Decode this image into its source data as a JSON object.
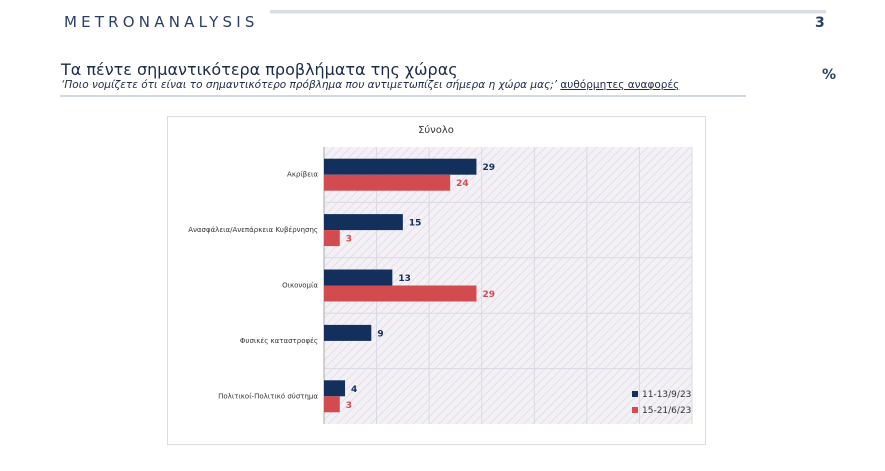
{
  "header": {
    "brand": "METRONANALYSIS",
    "page_number": "3",
    "title": "Τα πέντε σημαντικότερα προβλήματα της χώρας",
    "question": "‘Ποιο νομίζετε ότι είναι το σημαντικότερο πρόβλημα που αντιμετωπίζει σήμερα η χώρα μας;’",
    "question_tag": "αυθόρμητες αναφορές",
    "unit": "%"
  },
  "chart_data": {
    "type": "bar",
    "orientation": "horizontal",
    "title": "Σύνολο",
    "categories": [
      "Ακρίβεια",
      "Ανασφάλεια/Ανεπάρκεια Κυβέρνησης",
      "Οικονομία",
      "Φυσικές καταστροφές",
      "Πολιτικοί-Πολιτικό σύστημα"
    ],
    "series": [
      {
        "name": "11-13/9/23",
        "values": [
          29,
          15,
          13,
          9,
          4
        ],
        "color": "#13305c"
      },
      {
        "name": "15-21/6/23",
        "values": [
          24,
          3,
          29,
          null,
          3
        ],
        "color": "#d24b4f"
      }
    ],
    "xlim": [
      0,
      70
    ],
    "grid": true,
    "legend": "bottom-right"
  }
}
